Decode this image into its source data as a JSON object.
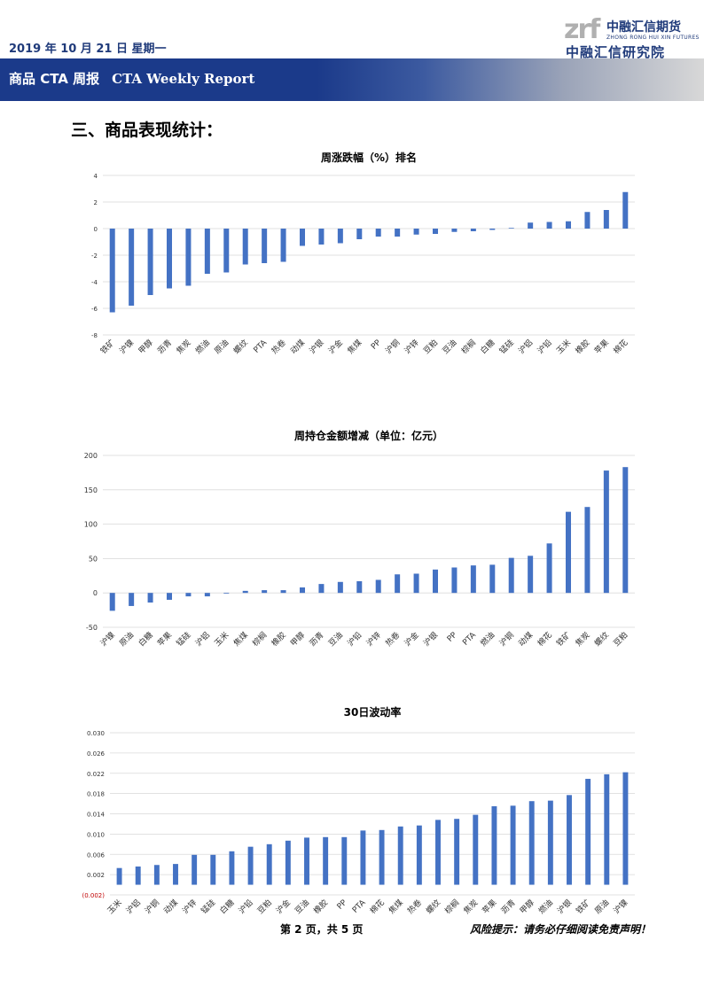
{
  "header": {
    "date": "2019 年 10 月 21 日  星期一",
    "logo_mark": "zrf",
    "logo_cn": "中融汇信期货",
    "logo_en": "ZHONG RONG HUI XIN FUTURES",
    "logo_institute": "中融汇信研究院",
    "banner_cn": "商品 CTA 周报",
    "banner_en": "CTA Weekly Report"
  },
  "section_title": "三、商品表现统计：",
  "colors": {
    "bar": "#4472c4",
    "grid": "#d9d9d9",
    "banner": "#1b3a8a",
    "neg_label": "#c00000"
  },
  "chart_data": [
    {
      "type": "bar",
      "title": "周涨跌幅（%）排名",
      "categories": [
        "铁矿",
        "沪镍",
        "甲醇",
        "沥青",
        "焦炭",
        "燃油",
        "原油",
        "螺纹",
        "PTA",
        "热卷",
        "动煤",
        "沪银",
        "沪金",
        "焦煤",
        "PP",
        "沪铜",
        "沪锌",
        "豆粕",
        "豆油",
        "棕榈",
        "白糖",
        "锰硅",
        "沪铝",
        "沪铅",
        "玉米",
        "橡胶",
        "苹果",
        "棉花"
      ],
      "values": [
        -6.3,
        -5.8,
        -5.0,
        -4.5,
        -4.3,
        -3.4,
        -3.3,
        -2.7,
        -2.6,
        -2.5,
        -1.3,
        -1.2,
        -1.1,
        -0.8,
        -0.6,
        -0.6,
        -0.45,
        -0.4,
        -0.25,
        -0.2,
        -0.1,
        0.05,
        0.45,
        0.5,
        0.55,
        1.25,
        1.4,
        2.75
      ],
      "ylim": [
        -8,
        4
      ],
      "yticks": [
        "-8",
        "-6",
        "-4",
        "-2",
        "0",
        "2",
        "4"
      ],
      "grid": true
    },
    {
      "type": "bar",
      "title": "周持仓金额增减（单位：亿元）",
      "categories": [
        "沪镍",
        "原油",
        "白糖",
        "苹果",
        "锰硅",
        "沪铝",
        "玉米",
        "焦煤",
        "棕榈",
        "橡胶",
        "甲醇",
        "沥青",
        "豆油",
        "沪铅",
        "沪锌",
        "热卷",
        "沪金",
        "沪银",
        "PP",
        "PTA",
        "燃油",
        "沪铜",
        "动煤",
        "棉花",
        "铁矿",
        "焦炭",
        "螺纹",
        "豆粕"
      ],
      "values": [
        -26,
        -19,
        -14,
        -10,
        -5,
        -5,
        -1,
        3,
        4,
        4,
        8,
        13,
        16,
        17,
        19,
        27,
        28,
        34,
        37,
        40,
        41,
        51,
        54,
        72,
        118,
        125,
        178,
        183
      ],
      "ylim": [
        -50,
        200
      ],
      "yticks": [
        "-50",
        "0",
        "50",
        "100",
        "150",
        "200"
      ],
      "grid": true
    },
    {
      "type": "bar",
      "title": "30日波动率",
      "categories": [
        "玉米",
        "沪铝",
        "沪铜",
        "动煤",
        "沪锌",
        "锰硅",
        "白糖",
        "沪铅",
        "豆粕",
        "沪金",
        "豆油",
        "橡胶",
        "PP",
        "PTA",
        "棉花",
        "焦煤",
        "热卷",
        "螺纹",
        "棕榈",
        "焦炭",
        "苹果",
        "沥青",
        "甲醇",
        "燃油",
        "沪银",
        "铁矿",
        "原油",
        "沪镍"
      ],
      "values": [
        0.0033,
        0.0036,
        0.0039,
        0.0041,
        0.0059,
        0.0059,
        0.0066,
        0.0075,
        0.008,
        0.0087,
        0.0093,
        0.0094,
        0.0094,
        0.0107,
        0.0108,
        0.0115,
        0.0117,
        0.0128,
        0.013,
        0.0138,
        0.0155,
        0.0156,
        0.0165,
        0.0166,
        0.0177,
        0.0209,
        0.0218,
        0.0222
      ],
      "ylim": [
        -0.002,
        0.03
      ],
      "yticks": [
        "(0.002)",
        "0.002",
        "0.006",
        "0.010",
        "0.014",
        "0.018",
        "0.022",
        "0.026",
        "0.030"
      ],
      "grid": true
    }
  ],
  "footer": {
    "page": "第 2 页，共 5 页",
    "risk": "风险提示：请务必仔细阅读免责声明！"
  }
}
